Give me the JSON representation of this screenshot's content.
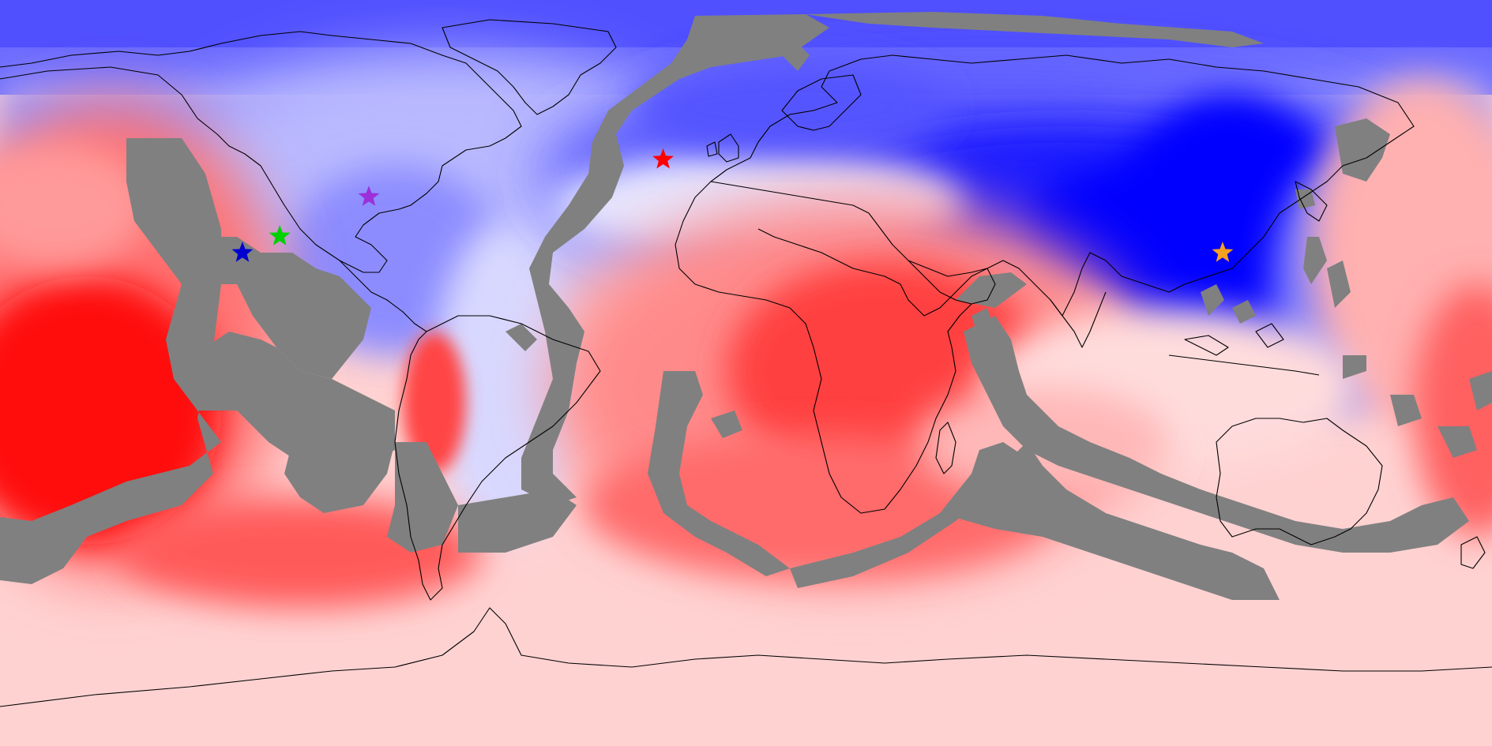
{
  "map": {
    "projection": "equirectangular",
    "style": "filled-contour",
    "colormap": "blue-white-red",
    "colors": {
      "strong_blue": "#0000ff",
      "blue": "#5a5aff",
      "light_blue": "#b4b4ff",
      "white": "#ffffff",
      "light_red": "#ffc8c8",
      "red": "#ff6464",
      "strong_red": "#ff0000",
      "masked": "#808080",
      "coastline": "#000000"
    },
    "markers": [
      {
        "name": "red-star",
        "color": "#ff0000",
        "lon": 0,
        "lat": 51.5
      },
      {
        "name": "purple-star",
        "color": "#9b30d9",
        "lon": -71,
        "lat": 42.5
      },
      {
        "name": "green-star",
        "color": "#00d000",
        "lon": -92.5,
        "lat": 33
      },
      {
        "name": "blue-star",
        "color": "#0000d0",
        "lon": -101.5,
        "lat": 29
      },
      {
        "name": "orange-star",
        "color": "#f5a020",
        "lon": 135,
        "lat": 29
      }
    ]
  }
}
